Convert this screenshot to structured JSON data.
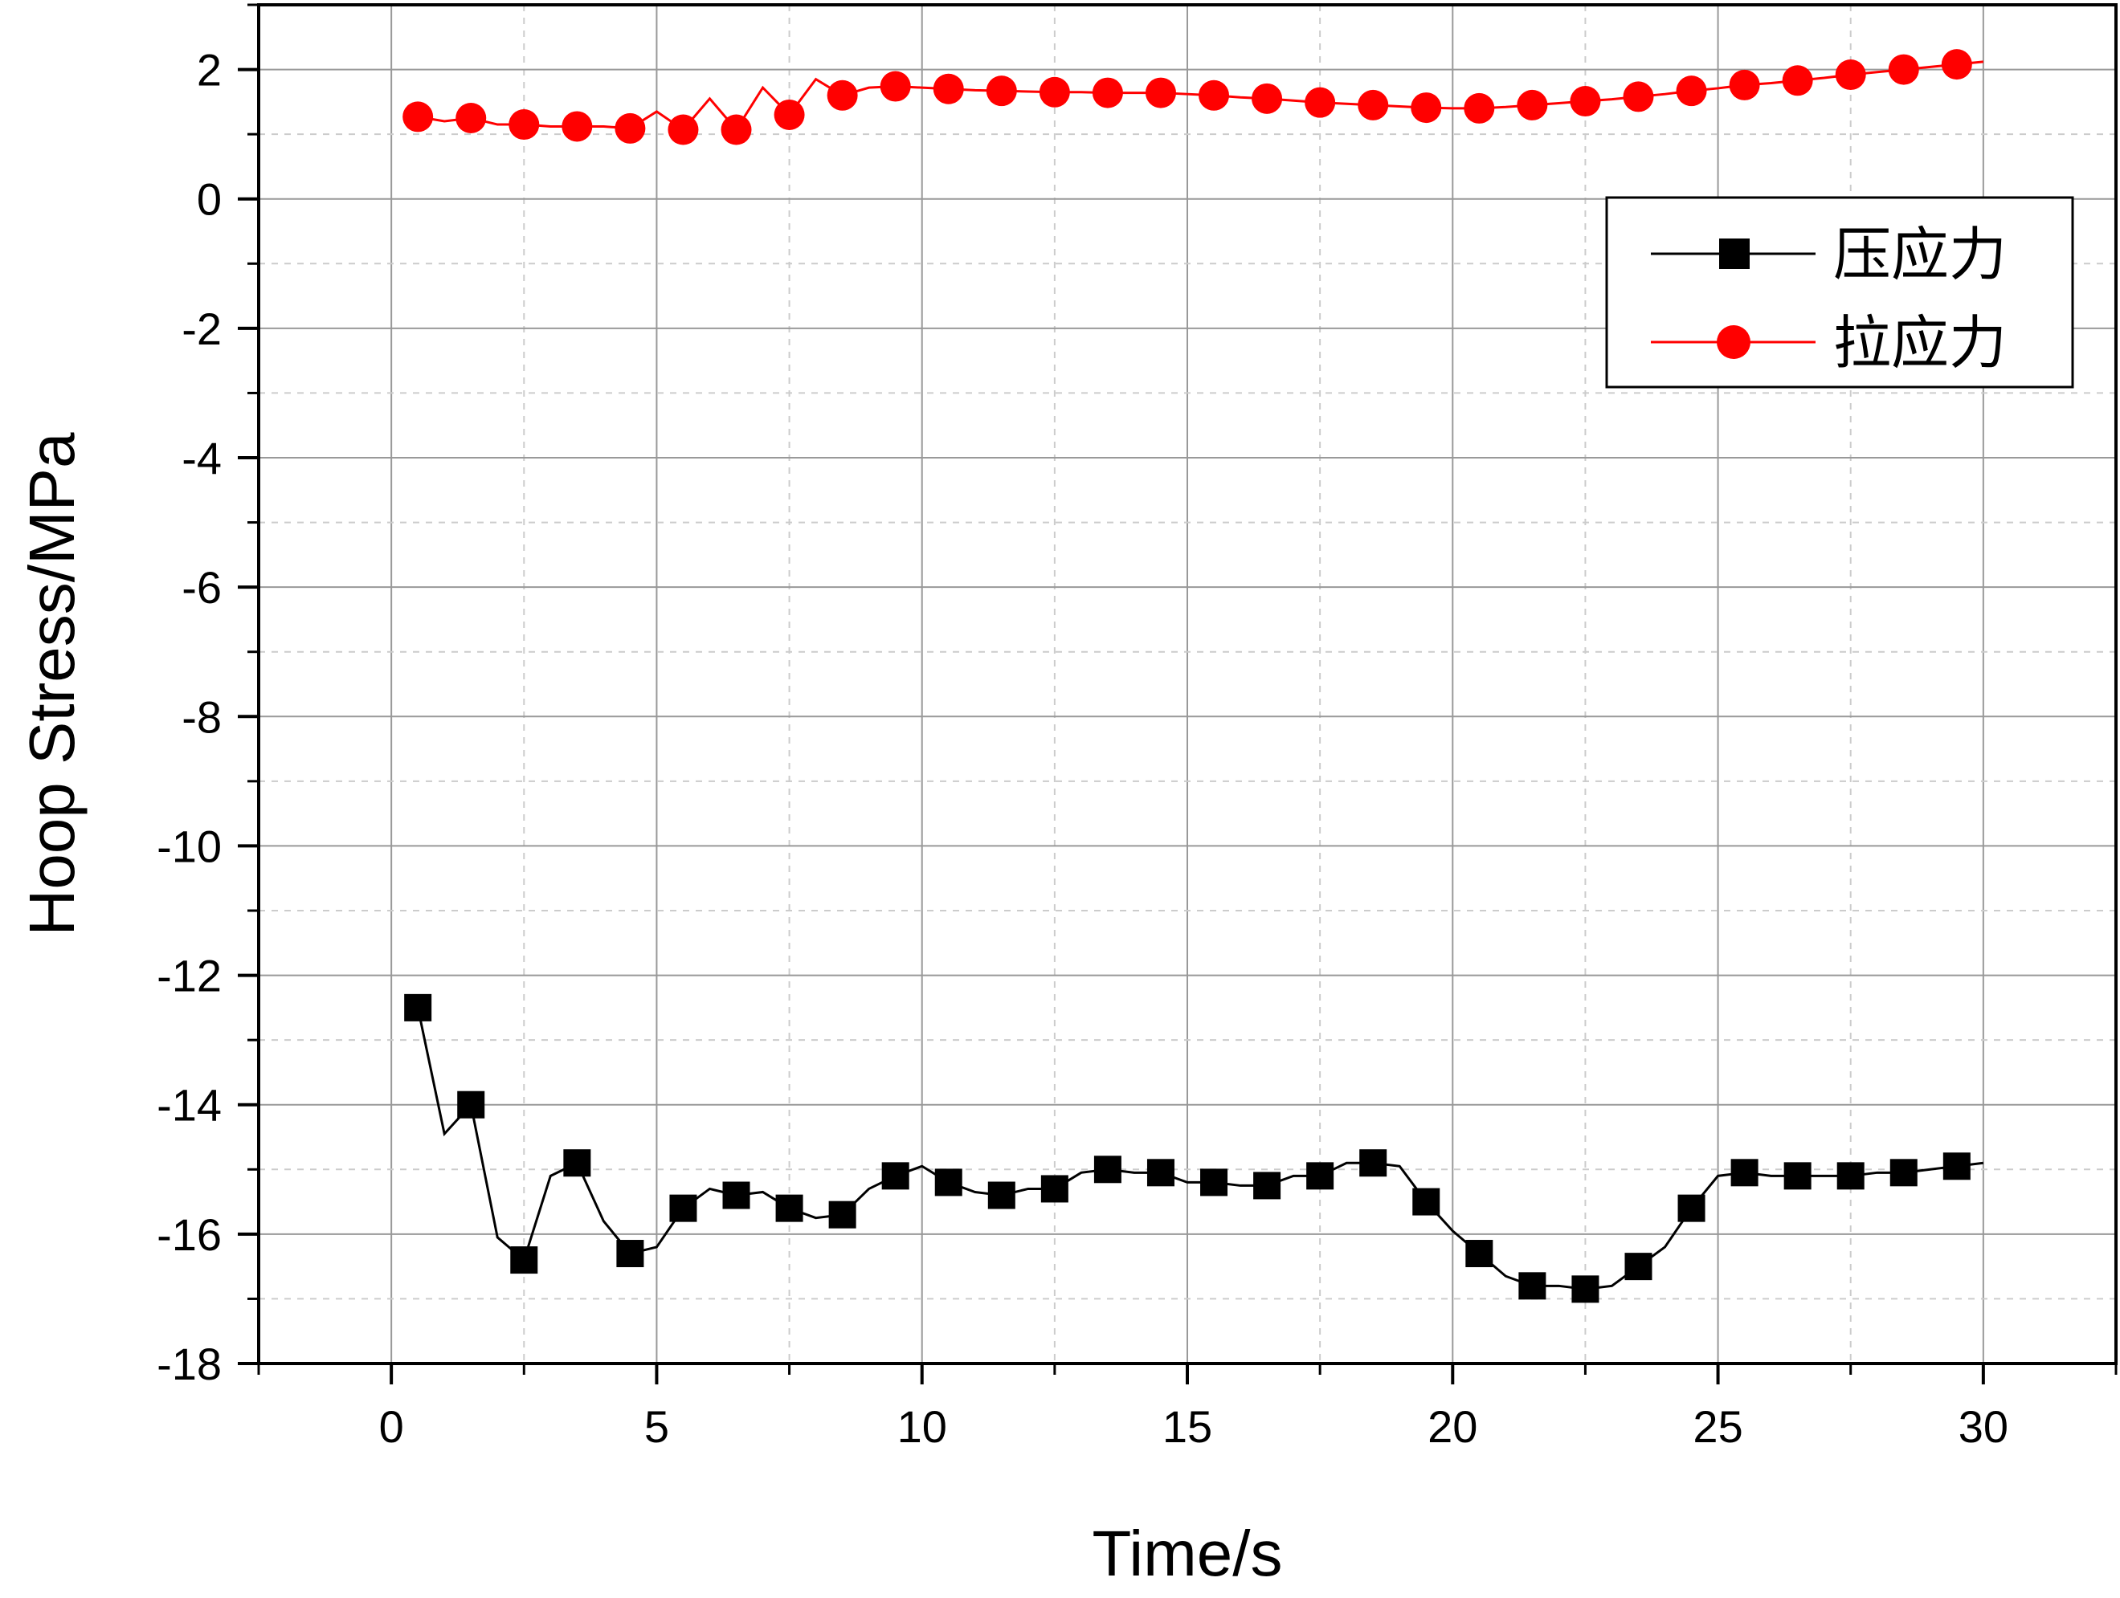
{
  "chart_data": {
    "type": "line",
    "xlabel": "Time/s",
    "ylabel": "Hoop Stress/MPa",
    "xlim": [
      -2.5,
      32.5
    ],
    "ylim": [
      -18,
      3
    ],
    "xticks": [
      0,
      5,
      10,
      15,
      20,
      25,
      30
    ],
    "yticks": [
      2,
      0,
      -2,
      -4,
      -6,
      -8,
      -10,
      -12,
      -14,
      -16,
      -18
    ],
    "grid": true,
    "legend_position": "top-right",
    "series": [
      {
        "name": "压应力",
        "color": "#000000",
        "marker": "square",
        "x": [
          0.5,
          1.5,
          2.5,
          3.5,
          4.5,
          5.5,
          6.5,
          7.5,
          8.5,
          9.5,
          10.5,
          11.5,
          12.5,
          13.5,
          14.5,
          15.5,
          16.5,
          17.5,
          18.5,
          19.5,
          20.5,
          21.5,
          22.5,
          23.5,
          24.5,
          25.5,
          26.5,
          27.5,
          28.5,
          29.5
        ],
        "values": [
          -12.5,
          -14.0,
          -16.4,
          -14.9,
          -16.3,
          -15.6,
          -15.4,
          -15.6,
          -15.7,
          -15.1,
          -15.2,
          -15.4,
          -15.3,
          -15.0,
          -15.05,
          -15.2,
          -15.25,
          -15.1,
          -14.9,
          -15.5,
          -16.3,
          -16.8,
          -16.85,
          -16.5,
          -15.6,
          -15.05,
          -15.1,
          -15.1,
          -15.05,
          -14.95
        ],
        "line_x": [
          0.5,
          1.0,
          1.5,
          2.0,
          2.5,
          3.0,
          3.5,
          4.0,
          4.5,
          5.0,
          5.5,
          6.0,
          6.5,
          7.0,
          7.5,
          8.0,
          8.5,
          9.0,
          9.5,
          10.0,
          10.5,
          11.0,
          11.5,
          12.0,
          12.5,
          13.0,
          13.5,
          14.0,
          14.5,
          15.0,
          15.5,
          16.0,
          16.5,
          17.0,
          17.5,
          18.0,
          18.5,
          19.0,
          19.5,
          20.0,
          20.5,
          21.0,
          21.5,
          22.0,
          22.5,
          23.0,
          23.5,
          24.0,
          24.5,
          25.0,
          25.5,
          26.0,
          26.5,
          27.0,
          27.5,
          28.0,
          28.5,
          29.0,
          29.5,
          30.0
        ],
        "line_y": [
          -12.5,
          -14.45,
          -14.0,
          -16.05,
          -16.4,
          -15.1,
          -14.9,
          -15.8,
          -16.3,
          -16.2,
          -15.6,
          -15.3,
          -15.4,
          -15.35,
          -15.6,
          -15.75,
          -15.7,
          -15.3,
          -15.1,
          -14.95,
          -15.2,
          -15.35,
          -15.4,
          -15.3,
          -15.3,
          -15.05,
          -15.0,
          -15.05,
          -15.05,
          -15.2,
          -15.2,
          -15.25,
          -15.25,
          -15.1,
          -15.1,
          -14.9,
          -14.9,
          -14.95,
          -15.5,
          -15.95,
          -16.3,
          -16.65,
          -16.8,
          -16.8,
          -16.85,
          -16.8,
          -16.5,
          -16.2,
          -15.6,
          -15.1,
          -15.05,
          -15.1,
          -15.1,
          -15.1,
          -15.1,
          -15.05,
          -15.05,
          -15.0,
          -14.95,
          -14.9
        ]
      },
      {
        "name": "拉应力",
        "color": "#ff0000",
        "marker": "circle",
        "x": [
          0.5,
          1.5,
          2.5,
          3.5,
          4.5,
          5.5,
          6.5,
          7.5,
          8.5,
          9.5,
          10.5,
          11.5,
          12.5,
          13.5,
          14.5,
          15.5,
          16.5,
          17.5,
          18.5,
          19.5,
          20.5,
          21.5,
          22.5,
          23.5,
          24.5,
          25.5,
          26.5,
          27.5,
          28.5,
          29.5
        ],
        "values": [
          1.27,
          1.25,
          1.15,
          1.12,
          1.09,
          1.07,
          1.07,
          1.3,
          1.6,
          1.74,
          1.7,
          1.67,
          1.65,
          1.64,
          1.64,
          1.6,
          1.55,
          1.49,
          1.45,
          1.41,
          1.4,
          1.45,
          1.51,
          1.58,
          1.67,
          1.76,
          1.83,
          1.92,
          2.0,
          2.08
        ],
        "line_x": [
          0.5,
          1.0,
          1.5,
          2.0,
          2.5,
          3.0,
          3.5,
          4.0,
          4.5,
          5.0,
          5.5,
          6.0,
          6.5,
          7.0,
          7.5,
          8.0,
          8.5,
          9.0,
          9.5,
          10.0,
          10.5,
          11.0,
          11.5,
          12.0,
          12.5,
          13.0,
          13.5,
          14.0,
          14.5,
          15.0,
          15.5,
          16.0,
          16.5,
          17.0,
          17.5,
          18.0,
          18.5,
          19.0,
          19.5,
          20.0,
          20.5,
          21.0,
          21.5,
          22.0,
          22.5,
          23.0,
          23.5,
          24.0,
          24.5,
          25.0,
          25.5,
          26.0,
          26.5,
          27.0,
          27.5,
          28.0,
          28.5,
          29.0,
          29.5,
          30.0
        ],
        "line_y": [
          1.27,
          1.2,
          1.25,
          1.15,
          1.15,
          1.12,
          1.12,
          1.12,
          1.09,
          1.35,
          1.07,
          1.55,
          1.07,
          1.72,
          1.3,
          1.85,
          1.6,
          1.72,
          1.74,
          1.72,
          1.7,
          1.68,
          1.67,
          1.66,
          1.65,
          1.65,
          1.64,
          1.64,
          1.64,
          1.62,
          1.6,
          1.57,
          1.55,
          1.52,
          1.49,
          1.47,
          1.45,
          1.43,
          1.41,
          1.4,
          1.4,
          1.42,
          1.45,
          1.48,
          1.51,
          1.54,
          1.58,
          1.62,
          1.67,
          1.71,
          1.76,
          1.79,
          1.83,
          1.87,
          1.92,
          1.96,
          2.0,
          2.04,
          2.08,
          2.12
        ]
      }
    ]
  }
}
